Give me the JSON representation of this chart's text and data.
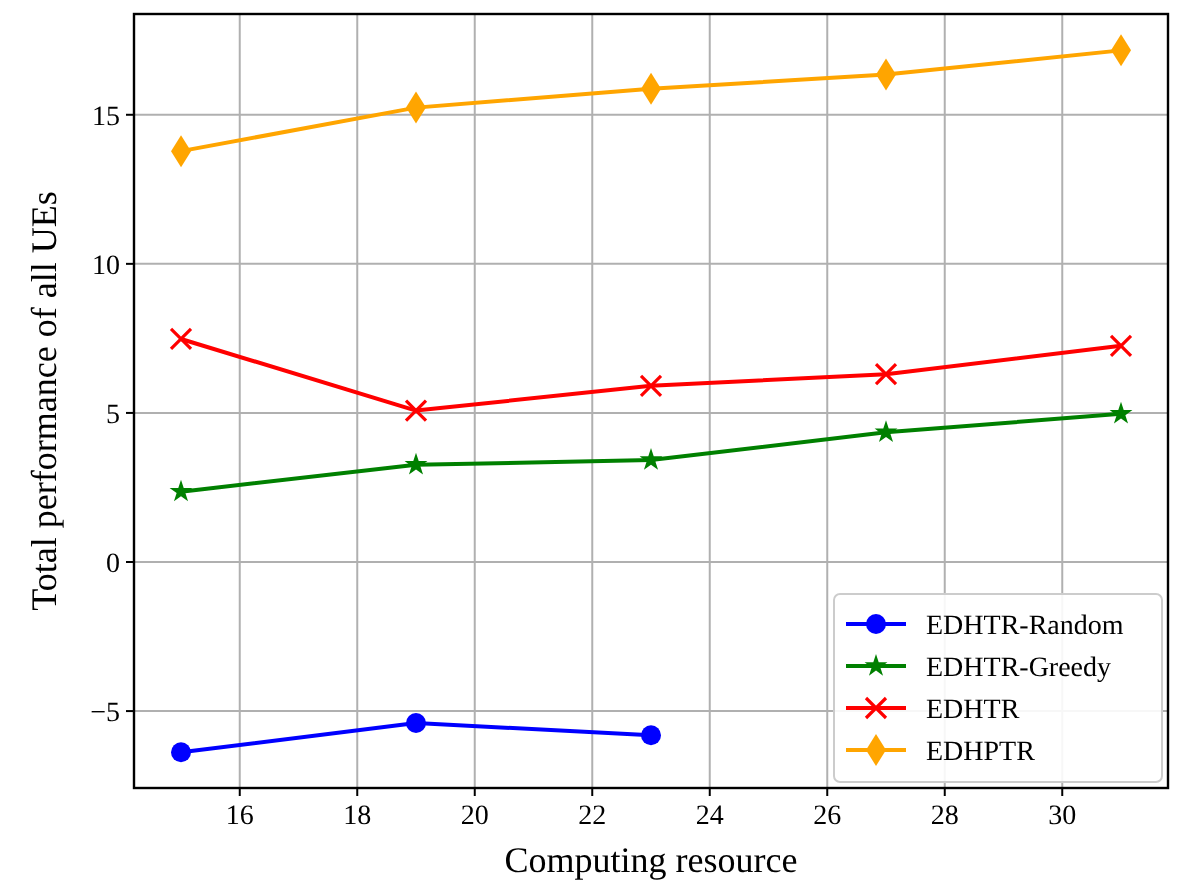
{
  "chart_data": {
    "type": "line",
    "xlabel": "Computing resource",
    "ylabel": "Total performance of all UEs",
    "x": [
      15,
      19,
      23,
      27,
      31
    ],
    "series": [
      {
        "name": "EDHTR-Random",
        "color": "#0000ff",
        "marker": "circle",
        "values": [
          -6.38,
          -5.4,
          -5.81,
          null,
          null
        ]
      },
      {
        "name": "EDHTR-Greedy",
        "color": "#008000",
        "marker": "star",
        "values": [
          2.36,
          3.26,
          3.42,
          4.35,
          4.97
        ]
      },
      {
        "name": "EDHTR",
        "color": "#ff0000",
        "marker": "cross",
        "values": [
          7.48,
          5.08,
          5.91,
          6.3,
          7.25
        ]
      },
      {
        "name": "EDHPTR",
        "color": "#ffa500",
        "marker": "diamond",
        "values": [
          13.78,
          15.24,
          15.87,
          16.35,
          17.16
        ]
      }
    ],
    "xlim": [
      14.2,
      31.8
    ],
    "xticks": [
      16,
      18,
      20,
      22,
      24,
      26,
      28,
      30
    ],
    "ylim": [
      -7.58,
      18.38
    ],
    "yticks": [
      -5,
      0,
      5,
      10,
      15
    ],
    "grid": true,
    "legend": "bottom right",
    "line_style": "solid"
  }
}
